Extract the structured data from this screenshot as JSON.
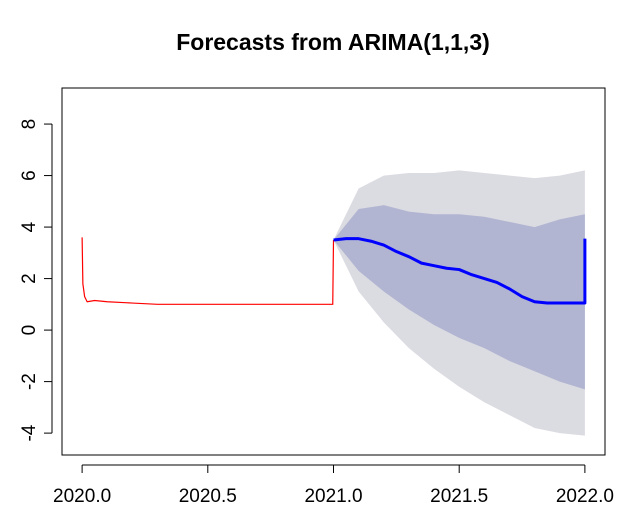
{
  "chart_data": {
    "type": "forecast",
    "title": "Forecasts from ARIMA(1,1,3)",
    "xlim": [
      2019.92,
      2022.08
    ],
    "ylim": [
      -4.85,
      9.4
    ],
    "xticks": [
      {
        "value": 2020,
        "label": "2020.0"
      },
      2020.5,
      {
        "value": 2021,
        "label": "2021.0"
      },
      2021.5,
      {
        "value": 2022,
        "label": "2022.0"
      }
    ],
    "yticks": [
      -4,
      -2,
      0,
      2,
      4,
      6,
      8
    ],
    "bands": [
      {
        "color": "#dbdbe2",
        "x": [
          2021.0,
          2021.1,
          2021.2,
          2021.3,
          2021.4,
          2021.5,
          2021.6,
          2021.7,
          2021.8,
          2021.9,
          2022.0
        ],
        "lower": [
          3.5,
          1.5,
          0.3,
          -0.7,
          -1.5,
          -2.2,
          -2.8,
          -3.3,
          -3.8,
          -4.0,
          -4.1
        ],
        "upper": [
          3.5,
          5.5,
          6.0,
          6.1,
          6.1,
          6.2,
          6.1,
          6.0,
          5.9,
          6.0,
          6.2
        ]
      },
      {
        "color": "#b1b5d1",
        "x": [
          2021.0,
          2021.1,
          2021.2,
          2021.3,
          2021.4,
          2021.5,
          2021.6,
          2021.7,
          2021.8,
          2021.9,
          2022.0
        ],
        "lower": [
          3.5,
          2.3,
          1.5,
          0.8,
          0.2,
          -0.3,
          -0.7,
          -1.2,
          -1.6,
          -2.0,
          -2.3
        ],
        "upper": [
          3.5,
          4.7,
          4.85,
          4.6,
          4.5,
          4.5,
          4.4,
          4.2,
          4.0,
          4.3,
          4.5
        ]
      }
    ],
    "series": [
      {
        "color": "#ff0000",
        "width": 1.2,
        "x": [
          2020.0,
          2020.003,
          2020.01,
          2020.02,
          2020.05,
          2020.1,
          2020.2,
          2020.3,
          2020.5,
          2020.7,
          2020.9,
          2020.997,
          2021.0
        ],
        "values": [
          3.6,
          1.8,
          1.3,
          1.1,
          1.15,
          1.1,
          1.05,
          1.0,
          1.0,
          1.0,
          1.0,
          1.0,
          3.5
        ]
      },
      {
        "color": "#0000ff",
        "width": 3,
        "x": [
          2021.0,
          2021.05,
          2021.1,
          2021.15,
          2021.2,
          2021.25,
          2021.3,
          2021.35,
          2021.4,
          2021.45,
          2021.5,
          2021.55,
          2021.6,
          2021.65,
          2021.7,
          2021.75,
          2021.8,
          2021.85,
          2021.9,
          2021.95,
          2022.0,
          2022.0
        ],
        "values": [
          3.5,
          3.55,
          3.55,
          3.45,
          3.3,
          3.05,
          2.85,
          2.6,
          2.5,
          2.4,
          2.35,
          2.15,
          2.0,
          1.85,
          1.6,
          1.3,
          1.1,
          1.05,
          1.05,
          1.05,
          1.05,
          3.55
        ]
      }
    ]
  }
}
